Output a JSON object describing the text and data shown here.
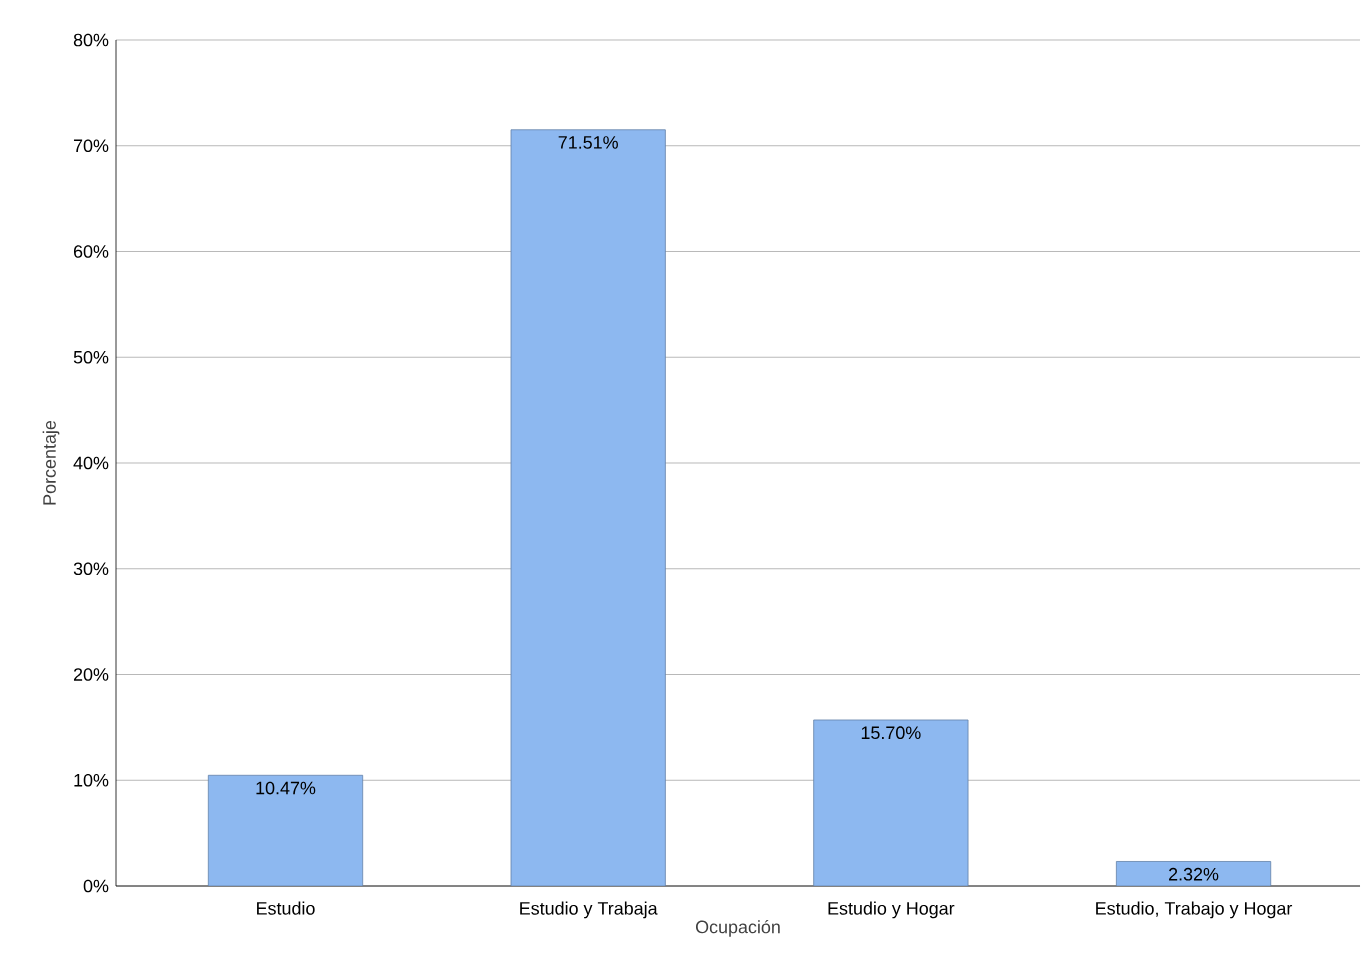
{
  "chart_data": {
    "type": "bar",
    "xlabel": "Ocupación",
    "ylabel": "Porcentaje",
    "categories": [
      "Estudio",
      "Estudio y Trabaja",
      "Estudio y Hogar",
      "Estudio, Trabajo y Hogar"
    ],
    "values": [
      10.47,
      71.51,
      15.7,
      2.32
    ],
    "value_labels": [
      "10.47%",
      "71.51%",
      "15.70%",
      "2.32%"
    ],
    "color": "#8db8f0",
    "ylim": [
      0,
      80
    ],
    "yticks": [
      {
        "value": 0,
        "label": "0%"
      },
      {
        "value": 10,
        "label": "10%"
      },
      {
        "value": 20,
        "label": "20%"
      },
      {
        "value": 30,
        "label": "30%"
      },
      {
        "value": 40,
        "label": "40%"
      },
      {
        "value": 50,
        "label": "50%"
      },
      {
        "value": 60,
        "label": "60%"
      },
      {
        "value": 70,
        "label": "70%"
      },
      {
        "value": 80,
        "label": "80%"
      }
    ],
    "grid": "y"
  }
}
